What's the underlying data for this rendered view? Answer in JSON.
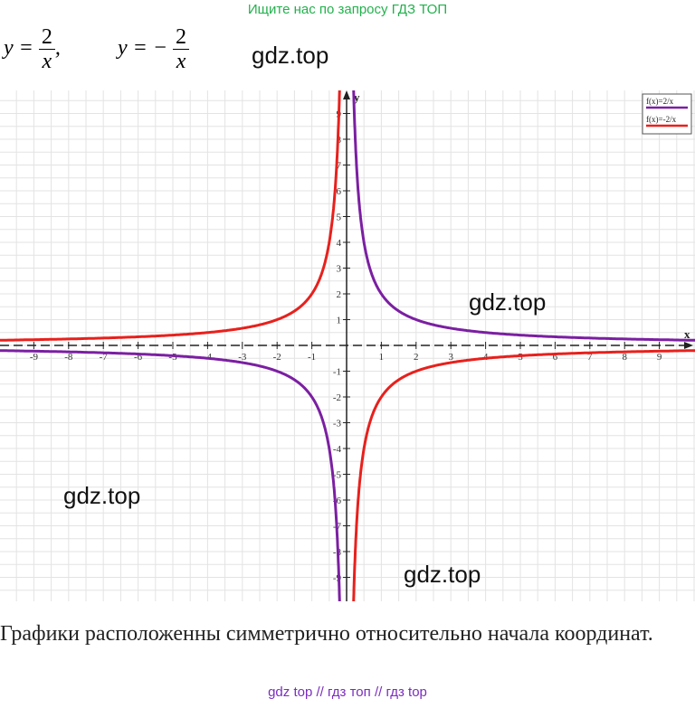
{
  "header": {
    "search_text": "Ищите нас по запросу ГДЗ ТОП"
  },
  "formulas": {
    "f1_lhs": "y =",
    "f1_num": "2",
    "f1_den": "x",
    "f1_tail": ",",
    "f2_lhs": "y = −",
    "f2_num": "2",
    "f2_den": "x"
  },
  "watermarks": [
    "gdz.top",
    "gdz.top",
    "gdz.top",
    "gdz.top"
  ],
  "caption": "Графики расположенны симметрично относительно начала координат.",
  "footer": {
    "links": [
      "gdz top",
      "гдз топ",
      "гдз top"
    ],
    "separator": "//"
  },
  "chart_data": {
    "type": "line",
    "title": "",
    "xlabel": "x",
    "ylabel": "y",
    "xlim": [
      -10,
      10
    ],
    "ylim": [
      -10,
      10
    ],
    "x_ticks": [
      "-9",
      "-8",
      "-7",
      "-6",
      "-5",
      "-4",
      "-3",
      "-2",
      "-1",
      "1",
      "2",
      "3",
      "4",
      "5",
      "6",
      "7",
      "8",
      "9"
    ],
    "y_ticks": [
      "9",
      "8",
      "7",
      "6",
      "5",
      "4",
      "3",
      "2",
      "1",
      "-1",
      "-2",
      "-3",
      "-4",
      "-5",
      "-6",
      "-7",
      "-8",
      "-9"
    ],
    "grid": true,
    "legend_placement": "top-right",
    "series": [
      {
        "name": "f(x)=2/x",
        "color": "#7b1fa2",
        "formula": "2/x"
      },
      {
        "name": "f(x)=-2/x",
        "color": "#e8201c",
        "formula": "-2/x"
      }
    ]
  }
}
